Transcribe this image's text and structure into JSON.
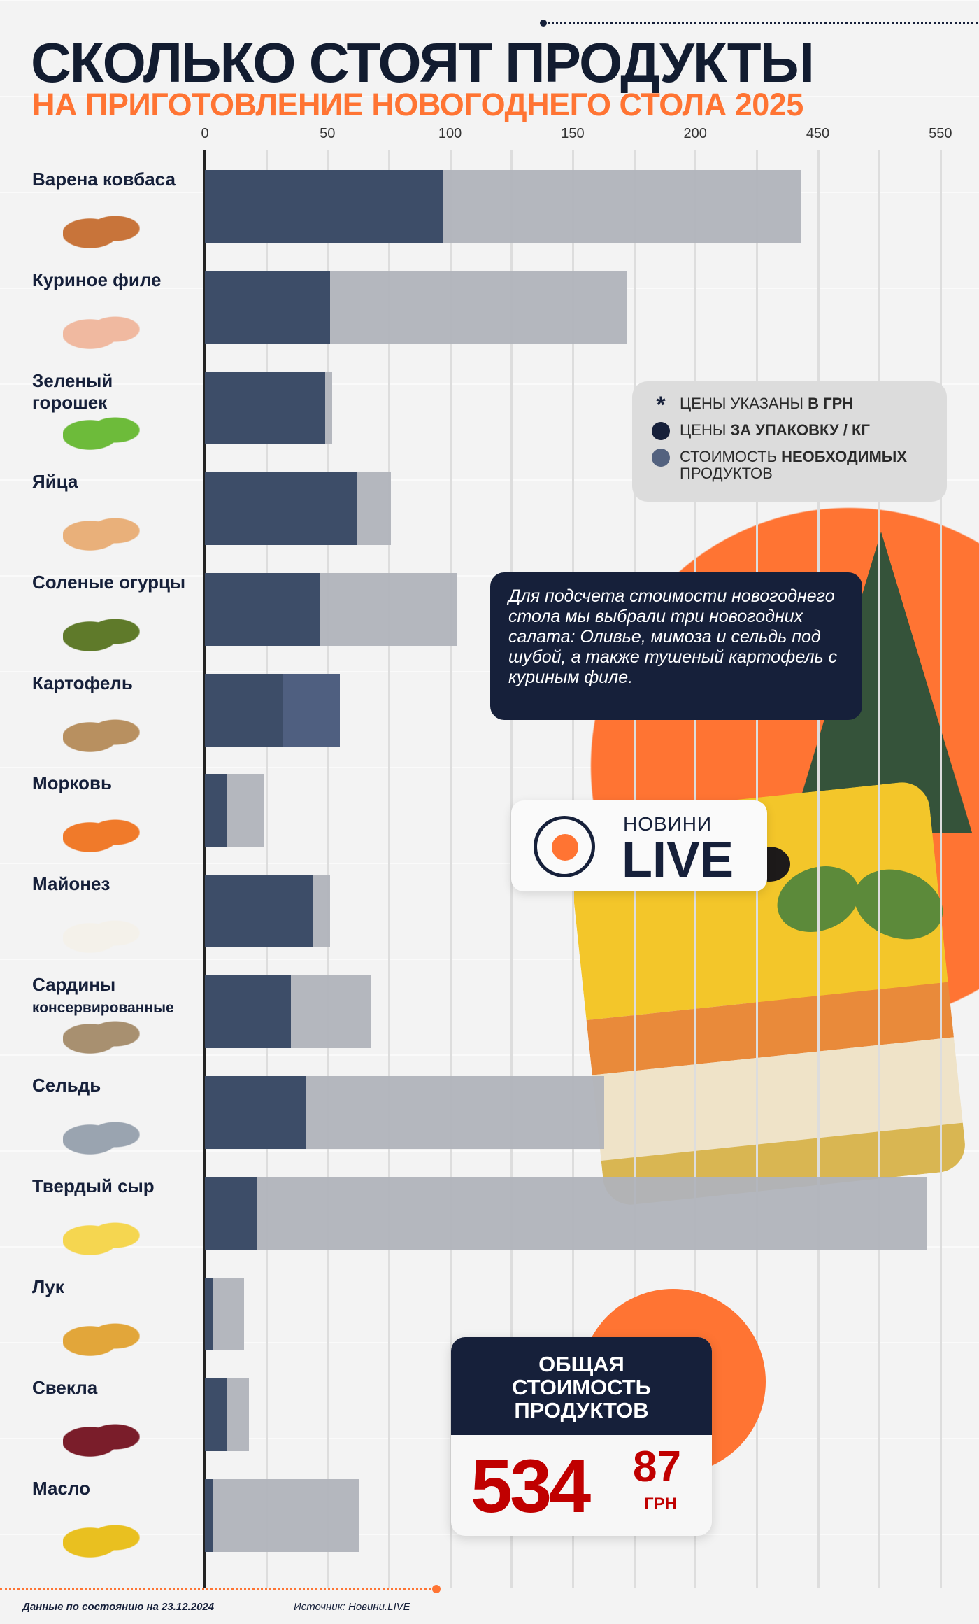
{
  "header": {
    "title": "СКОЛЬКО СТОЯТ ПРОДУКТЫ",
    "subtitle": "НА ПРИГОТОВЛЕНИЕ НОВОГОДНЕГО СТОЛА 2025"
  },
  "colors": {
    "dark_bar": "#3d4d68",
    "light_bar": "#b0b3ba",
    "needed_bar": "#4f5f80",
    "accent": "#ff7433",
    "navy": "#16203a",
    "total_red": "#c00000"
  },
  "chart_data": {
    "type": "bar",
    "orientation": "horizontal",
    "x_ticks": [
      0,
      50,
      100,
      150,
      200,
      450,
      550
    ],
    "x_scale": "broken (ticks evenly spaced)",
    "grid": true,
    "categories": [
      "Варена ковбаса",
      "Куриное филе",
      "Зеленый горошек",
      "Яйца",
      "Соленые огурцы",
      "Картофель",
      "Морковь",
      "Майонез",
      "Сардины консервированные",
      "Сельдь",
      "Твердый сыр",
      "Лук",
      "Свекла",
      "Масло"
    ],
    "rows": [
      {
        "label": "Варена ковбаса",
        "dark": 97,
        "second": 417,
        "second_color": "light"
      },
      {
        "label": "Куриное филе",
        "dark": 51,
        "second": 172,
        "second_color": "light"
      },
      {
        "label": "Зеленый горошек",
        "dark": 49,
        "second": 52,
        "second_color": "light"
      },
      {
        "label": "Яйца",
        "dark": 62,
        "second": 76,
        "second_color": "light"
      },
      {
        "label": "Соленые огурцы",
        "dark": 47,
        "second": 103,
        "second_color": "light"
      },
      {
        "label": "Картофель",
        "dark": 32,
        "second": 55,
        "second_color": "needed"
      },
      {
        "label": "Морковь",
        "dark": 9,
        "second": 24,
        "second_color": "light"
      },
      {
        "label": "Майонез",
        "dark": 44,
        "second": 51,
        "second_color": "light"
      },
      {
        "label": "Сардины",
        "label_sub": "консервированные",
        "dark": 35,
        "second": 68,
        "second_color": "light"
      },
      {
        "label": "Сельдь",
        "dark": 41,
        "second": 163,
        "second_color": "light"
      },
      {
        "label": "Твердый сыр",
        "dark": 21,
        "second": 539,
        "second_color": "light"
      },
      {
        "label": "Лук",
        "dark": 3,
        "second": 16,
        "second_color": "light"
      },
      {
        "label": "Свекла",
        "dark": 9,
        "second": 18,
        "second_color": "light"
      },
      {
        "label": "Масло",
        "dark": 3,
        "second": 63,
        "second_color": "light"
      }
    ]
  },
  "legend": {
    "items": [
      {
        "icon": "asterisk-icon",
        "text": "ЦЕНЫ УКАЗАНЫ ",
        "bold": "В ГРН",
        "after": ""
      },
      {
        "icon": "navy-dot",
        "text": "ЦЕНЫ ",
        "bold": "ЗА УПАКОВКУ / КГ",
        "after": ""
      },
      {
        "icon": "blue-dot",
        "text": "СТОИМОСТЬ ",
        "bold": "НЕОБХОДИМЫХ",
        "after": " ПРОДУКТОВ"
      }
    ]
  },
  "info": {
    "text": "Для подсчета стоимости новогоднего стола мы выбрали три новогодних салата: Оливье, мимоза и сельдь под шубой, а также тушеный картофель с куриным филе."
  },
  "logo": {
    "small": "НОВИНИ",
    "big": "LIVE"
  },
  "total": {
    "heading": "ОБЩАЯ СТОИМОСТЬ ПРОДУКТОВ",
    "integer": "534",
    "decimal": "87",
    "currency": "ГРН"
  },
  "footer": {
    "date": "Данные по состоянию на 23.12.2024",
    "source": "Источник: Новини.LIVE"
  }
}
